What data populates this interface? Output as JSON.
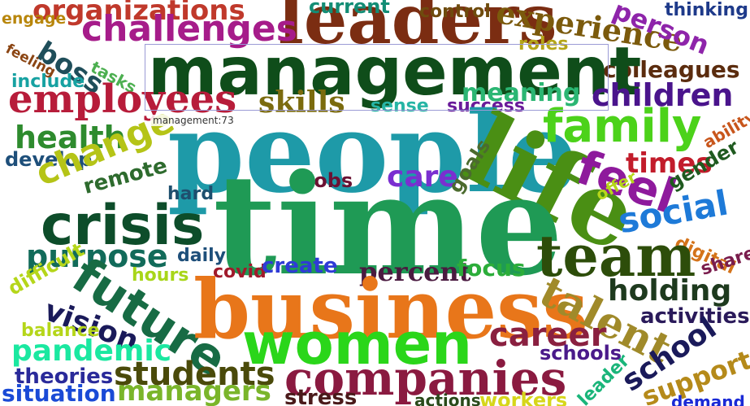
{
  "tooltip": {
    "text": "management:73"
  },
  "words": [
    {
      "text": "organizations",
      "color": "#c0392b"
    },
    {
      "text": "engage",
      "color": "#b8860b"
    },
    {
      "text": "leaders",
      "color": "#7b2d12"
    },
    {
      "text": "current",
      "color": "#138d75"
    },
    {
      "text": "control",
      "color": "#6e4b0d"
    },
    {
      "text": "experience",
      "color": "#7b5a0c"
    },
    {
      "text": "person",
      "color": "#8e24aa"
    },
    {
      "text": "thinking",
      "color": "#1e3a8a"
    },
    {
      "text": "challenges",
      "color": "#a61c8a"
    },
    {
      "text": "boss",
      "color": "#1f4e5a"
    },
    {
      "text": "roles",
      "color": "#b5a518"
    },
    {
      "text": "colleagues",
      "color": "#5b2c0e"
    },
    {
      "text": "feeling",
      "color": "#8b4513"
    },
    {
      "text": "tasks",
      "color": "#4caf50"
    },
    {
      "text": "management",
      "color": "#0f4d1a"
    },
    {
      "text": "include",
      "color": "#17a2a2"
    },
    {
      "text": "employees",
      "color": "#b71c3a"
    },
    {
      "text": "children",
      "color": "#4a148c"
    },
    {
      "text": "meaning",
      "color": "#2bb673"
    },
    {
      "text": "skills",
      "color": "#7b6b0e"
    },
    {
      "text": "sense",
      "color": "#26b5a5"
    },
    {
      "text": "success",
      "color": "#6a1b9a"
    },
    {
      "text": "people",
      "color": "#1e9aa8"
    },
    {
      "text": "family",
      "color": "#4cd21a"
    },
    {
      "text": "health",
      "color": "#2e8b2e"
    },
    {
      "text": "ability",
      "color": "#c8561c"
    },
    {
      "text": "develop",
      "color": "#1e4f7a"
    },
    {
      "text": "change",
      "color": "#b5c417"
    },
    {
      "text": "life",
      "color": "#4a8f14"
    },
    {
      "text": "feel",
      "color": "#8e1a9c"
    },
    {
      "text": "times",
      "color": "#c21c2b"
    },
    {
      "text": "jobs",
      "color": "#6b1233"
    },
    {
      "text": "care",
      "color": "#7a2fd0"
    },
    {
      "text": "remote",
      "color": "#2e6b2e"
    },
    {
      "text": "goals",
      "color": "#4b6b2e"
    },
    {
      "text": "offer",
      "color": "#b5d61a"
    },
    {
      "text": "gender",
      "color": "#1f5a1f"
    },
    {
      "text": "hard",
      "color": "#1e4f6e"
    },
    {
      "text": "crisis",
      "color": "#0d4d2a"
    },
    {
      "text": "time",
      "color": "#1f9a55"
    },
    {
      "text": "social",
      "color": "#1e7ad8"
    },
    {
      "text": "digital",
      "color": "#d4731a"
    },
    {
      "text": "purpose",
      "color": "#126b5a"
    },
    {
      "text": "team",
      "color": "#2d4d0a"
    },
    {
      "text": "daily",
      "color": "#1e4f7a"
    },
    {
      "text": "share",
      "color": "#7a1d4d"
    },
    {
      "text": "difficult",
      "color": "#b5d61a"
    },
    {
      "text": "covid",
      "color": "#a01a2b"
    },
    {
      "text": "create",
      "color": "#2f3bd6"
    },
    {
      "text": "percent",
      "color": "#4a1a40"
    },
    {
      "text": "focus",
      "color": "#2cad3a"
    },
    {
      "text": "hours",
      "color": "#a8d619"
    },
    {
      "text": "future",
      "color": "#176b44"
    },
    {
      "text": "holding",
      "color": "#1e3a1e"
    },
    {
      "text": "business",
      "color": "#e8761a"
    },
    {
      "text": "vision",
      "color": "#1a1a5a"
    },
    {
      "text": "activities",
      "color": "#2a1a5a"
    },
    {
      "text": "talent",
      "color": "#a08a2a"
    },
    {
      "text": "balance",
      "color": "#b5d61a"
    },
    {
      "text": "career",
      "color": "#8a2040"
    },
    {
      "text": "pandemic",
      "color": "#1ae8a0"
    },
    {
      "text": "women",
      "color": "#2ad61a"
    },
    {
      "text": "schools",
      "color": "#4a1a8a"
    },
    {
      "text": "school",
      "color": "#1a1a5a"
    },
    {
      "text": "students",
      "color": "#4a4a0a"
    },
    {
      "text": "theories",
      "color": "#2a2a9a"
    },
    {
      "text": "leader",
      "color": "#1ab57a"
    },
    {
      "text": "companies",
      "color": "#8a1a40"
    },
    {
      "text": "support",
      "color": "#b58a1a"
    },
    {
      "text": "situation",
      "color": "#1a4ad6"
    },
    {
      "text": "managers",
      "color": "#7ab52a"
    },
    {
      "text": "stress",
      "color": "#4a1a1a"
    },
    {
      "text": "actions",
      "color": "#2a4a1a"
    },
    {
      "text": "workers",
      "color": "#d6d61a"
    },
    {
      "text": "demand",
      "color": "#1a2ad6"
    }
  ]
}
